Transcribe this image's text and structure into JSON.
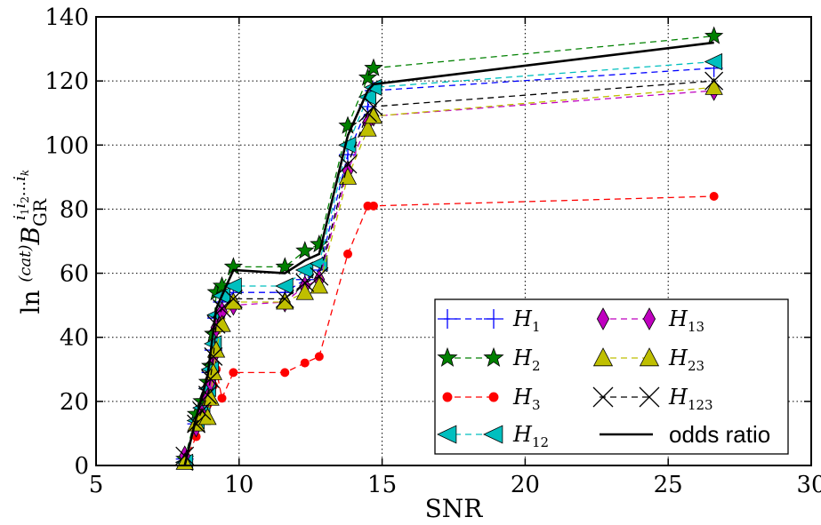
{
  "chart_data": {
    "type": "line",
    "xlabel": "SNR",
    "ylabel": "ln (cat)B_GR^{i1 i2 ... ik}",
    "ylabel_parts": {
      "prefix": "ln",
      "sup_cat": "(cat)",
      "base": "B",
      "sub": "GR",
      "sup": "i",
      "sup_idx": "1",
      "sup_idx2": "2",
      "sup_dots": "...",
      "sup_k": "k"
    },
    "xlim": [
      5,
      30
    ],
    "ylim": [
      0,
      140
    ],
    "xticks": [
      5,
      10,
      15,
      20,
      25,
      30
    ],
    "yticks": [
      0,
      20,
      40,
      60,
      80,
      100,
      120,
      140
    ],
    "grid": true,
    "legend_placement": "lower-right",
    "series": [
      {
        "name": "H",
        "sub": "1",
        "color": "#0000ff",
        "marker": "plus",
        "dashed": true,
        "x": [
          8.1,
          8.5,
          8.7,
          8.9,
          9.0,
          9.1,
          9.2,
          9.4,
          9.8,
          11.6,
          12.3,
          12.8,
          13.8,
          14.5,
          14.7,
          26.6
        ],
        "y": [
          2,
          13,
          18,
          24,
          29,
          36,
          46,
          51,
          54,
          54,
          58,
          61,
          97,
          112,
          117,
          124
        ]
      },
      {
        "name": "H",
        "sub": "2",
        "color": "#008000",
        "marker": "star",
        "dashed": true,
        "x": [
          8.1,
          8.5,
          8.7,
          8.9,
          9.0,
          9.1,
          9.2,
          9.4,
          9.8,
          11.6,
          12.3,
          12.8,
          13.8,
          14.5,
          14.7,
          26.6
        ],
        "y": [
          2,
          16,
          20,
          26,
          31,
          41,
          54,
          56,
          62,
          62,
          67,
          69,
          106,
          121,
          124,
          134
        ]
      },
      {
        "name": "H",
        "sub": "3",
        "color": "#ff0000",
        "marker": "circle",
        "dashed": true,
        "x": [
          8.1,
          8.5,
          8.7,
          8.9,
          9.0,
          9.1,
          9.2,
          9.4,
          9.8,
          11.6,
          12.3,
          12.8,
          13.8,
          14.5,
          14.7,
          26.6
        ],
        "y": [
          1,
          9,
          15,
          19,
          22,
          25,
          30,
          21,
          29,
          29,
          32,
          34,
          66,
          81,
          81,
          84
        ]
      },
      {
        "name": "H",
        "sub": "12",
        "color": "#00bfbf",
        "marker": "triangle-left",
        "dashed": true,
        "x": [
          8.1,
          8.5,
          8.7,
          8.9,
          9.0,
          9.1,
          9.2,
          9.4,
          9.8,
          11.6,
          12.3,
          12.8,
          13.8,
          14.5,
          14.7,
          26.6
        ],
        "y": [
          1,
          14,
          18,
          24,
          30,
          38,
          47,
          53,
          56,
          56,
          61,
          63,
          100,
          115,
          118,
          126
        ]
      },
      {
        "name": "H",
        "sub": "13",
        "color": "#bf00bf",
        "marker": "diamond",
        "dashed": true,
        "x": [
          8.1,
          8.5,
          8.7,
          8.9,
          9.0,
          9.1,
          9.2,
          9.4,
          9.8,
          11.6,
          12.3,
          12.8,
          13.8,
          14.5,
          14.7,
          26.6
        ],
        "y": [
          3,
          12,
          16,
          21,
          26,
          34,
          43,
          48,
          50,
          51,
          56,
          58,
          92,
          107,
          109,
          117
        ]
      },
      {
        "name": "H",
        "sub": "23",
        "color": "#bfbf00",
        "marker": "triangle-up",
        "dashed": true,
        "x": [
          8.1,
          8.5,
          8.7,
          8.9,
          9.0,
          9.1,
          9.2,
          9.4,
          9.8,
          11.6,
          12.3,
          12.8,
          13.8,
          14.5,
          14.7,
          26.6
        ],
        "y": [
          1,
          13,
          15,
          15,
          21,
          29,
          36,
          44,
          51,
          51,
          54,
          56,
          90,
          105,
          109,
          118
        ]
      },
      {
        "name": "H",
        "sub": "123",
        "color": "#000000",
        "marker": "x",
        "dashed": true,
        "x": [
          8.1,
          8.5,
          8.7,
          8.9,
          9.0,
          9.1,
          9.2,
          9.4,
          9.8,
          11.6,
          12.3,
          12.8,
          13.8,
          14.5,
          14.7,
          26.6
        ],
        "y": [
          3,
          13,
          17,
          22,
          27,
          34,
          44,
          49,
          52,
          52,
          57,
          59,
          94,
          110,
          112,
          120
        ]
      },
      {
        "name": "odds ratio",
        "sub": "",
        "color": "#000000",
        "marker": "none",
        "dashed": false,
        "x": [
          8.1,
          8.5,
          8.9,
          9.2,
          9.4,
          9.8,
          11.6,
          12.3,
          12.8,
          13.8,
          14.5,
          14.7,
          26.6
        ],
        "y": [
          0,
          15,
          28,
          49,
          53,
          61,
          60,
          64,
          66,
          103,
          117,
          119,
          132
        ]
      }
    ]
  }
}
